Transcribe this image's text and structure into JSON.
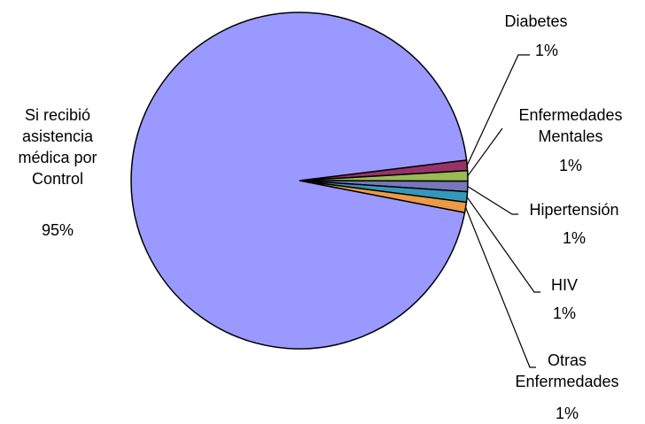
{
  "chart_data": {
    "type": "pie",
    "categories": [
      "Diabetes",
      "Enfermedades Mentales",
      "Hipertensión",
      "HIV",
      "Otras Enfermedades",
      "Si recibió asistencia médica por Control"
    ],
    "values": [
      1,
      1,
      1,
      1,
      1,
      95
    ],
    "value_labels": [
      "1%",
      "1%",
      "1%",
      "1%",
      "1%",
      "95%"
    ],
    "colors": [
      "#993366",
      "#99bb55",
      "#7777bb",
      "#3399bb",
      "#ee9944",
      "#9999ff"
    ]
  }
}
